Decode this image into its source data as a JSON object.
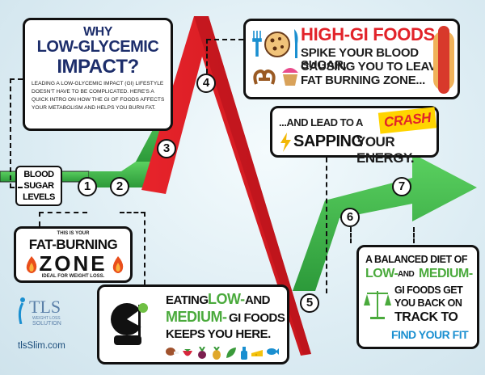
{
  "why": {
    "title1": "WHY",
    "title2": "LOW-GLYCEMIC",
    "title3": "IMPACT?",
    "body": "Leading a low-glycemic impact (GI) lifestyle doesn't have to be complicated. Here's a quick intro on how the GI of foods affects your metabolism and helps you burn fat."
  },
  "high_gi": {
    "title": "HIGH-GI FOODS",
    "line1": "SPIKE YOUR BLOOD SUGAR,",
    "line2": "CAUSING YOU TO  LEAVE",
    "line3": "FAT BURNING ZONE..."
  },
  "crash": {
    "pre": "...AND LEAD TO A",
    "word": "CRASH",
    "sapping": "SAPPING",
    "rest": "YOUR ENERGY."
  },
  "blood_sugar": {
    "line1": "BLOOD",
    "line2": "SUGAR",
    "line3": "LEVELS"
  },
  "fat_zone": {
    "small": "THIS IS YOUR",
    "line1": "FAT-BURNING",
    "zone": "ZONE",
    "ideal": "IDEAL FOR WEIGHT LOSS."
  },
  "eating": {
    "w1": "EATING",
    "w2": "LOW-",
    "w3": "AND",
    "w4": "MEDIUM-",
    "w5": "GI FOODS",
    "line3": "KEEPS YOU HERE."
  },
  "balanced": {
    "line1": "A BALANCED DIET OF",
    "low": "LOW-",
    "and": "AND",
    "medium": "MEDIUM-",
    "line3": "GI FOODS GET",
    "line4": "YOU BACK ON",
    "track": "TRACK TO",
    "find": "FIND YOUR FIT"
  },
  "numbers": [
    "1",
    "2",
    "3",
    "4",
    "5",
    "6",
    "7"
  ],
  "logo": {
    "name": "TLS",
    "tag1": "WEIGHT LOSS",
    "tag2": "SOLUTION",
    "url": "tlsSlim.com"
  },
  "colors": {
    "green": "#3bb54a",
    "red": "#e2232a",
    "navy": "#1d2e6b",
    "blue": "#1a8fd0",
    "lime": "#4aaa3c"
  }
}
